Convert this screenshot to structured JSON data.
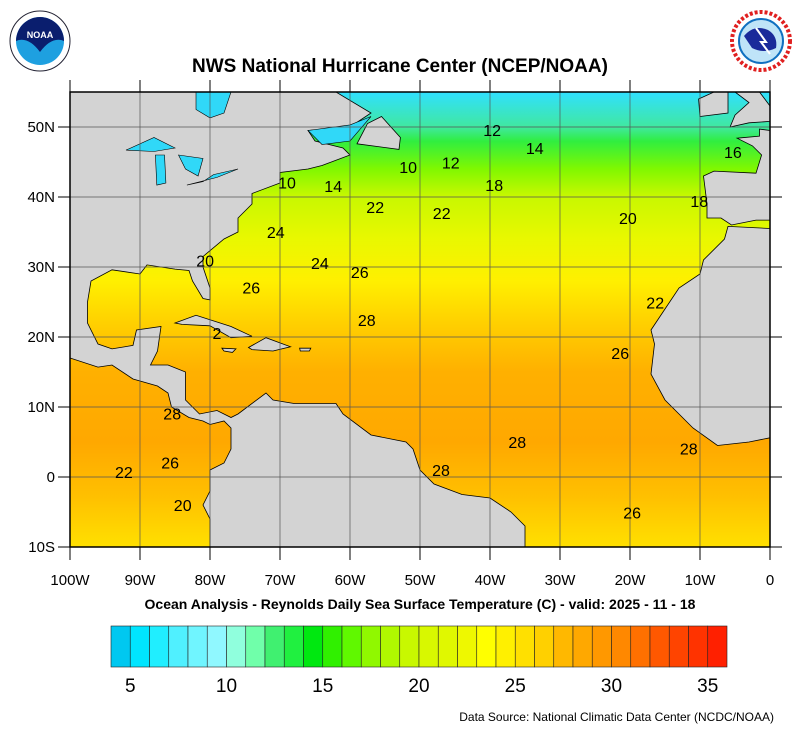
{
  "header": {
    "title": "NWS National Hurricane Center (NCEP/NOAA)",
    "left_logo": "NOAA",
    "right_logo": "NATIONAL WEATHER SERVICE"
  },
  "map": {
    "subtitle": "Ocean Analysis - Reynolds Daily Sea Surface Temperature (C) - valid: 2025 - 11 - 18",
    "lon_range": [
      -100,
      0
    ],
    "lat_range": [
      -10,
      55
    ],
    "lon_ticks": [
      "100W",
      "90W",
      "80W",
      "70W",
      "60W",
      "50W",
      "40W",
      "30W",
      "20W",
      "10W",
      "0"
    ],
    "lat_ticks": [
      "10S",
      "0",
      "10N",
      "20N",
      "30N",
      "40N",
      "50N"
    ],
    "land_color": "#d3d3d3",
    "grid": true,
    "contour_labels": [
      {
        "value": "12",
        "lon": -39.7,
        "lat": 49.6
      },
      {
        "value": "14",
        "lon": -33.6,
        "lat": 47
      },
      {
        "value": "16",
        "lon": -5.3,
        "lat": 46.4
      },
      {
        "value": "12",
        "lon": -45.6,
        "lat": 44.9
      },
      {
        "value": "10",
        "lon": -51.7,
        "lat": 44.3
      },
      {
        "value": "10",
        "lon": -69,
        "lat": 42.1
      },
      {
        "value": "14",
        "lon": -62.4,
        "lat": 41.6
      },
      {
        "value": "18",
        "lon": -39.4,
        "lat": 41.7
      },
      {
        "value": "22",
        "lon": -56.4,
        "lat": 38.6
      },
      {
        "value": "22",
        "lon": -46.9,
        "lat": 37.7
      },
      {
        "value": "20",
        "lon": -20.3,
        "lat": 37
      },
      {
        "value": "18",
        "lon": -10.1,
        "lat": 39.4
      },
      {
        "value": "24",
        "lon": -70.6,
        "lat": 35
      },
      {
        "value": "24",
        "lon": -64.3,
        "lat": 30.6
      },
      {
        "value": "26",
        "lon": -58.6,
        "lat": 29.3
      },
      {
        "value": "20",
        "lon": -80.7,
        "lat": 30.9
      },
      {
        "value": "26",
        "lon": -74.1,
        "lat": 27.1
      },
      {
        "value": "28",
        "lon": -57.6,
        "lat": 22.4
      },
      {
        "value": "22",
        "lon": -16.4,
        "lat": 24.9
      },
      {
        "value": "26",
        "lon": -21.4,
        "lat": 17.7
      },
      {
        "value": "2",
        "lon": -79,
        "lat": 20.6
      },
      {
        "value": "28",
        "lon": -85.4,
        "lat": 9.1
      },
      {
        "value": "28",
        "lon": -36.1,
        "lat": 5
      },
      {
        "value": "28",
        "lon": -11.6,
        "lat": 4.1
      },
      {
        "value": "28",
        "lon": -47,
        "lat": 1
      },
      {
        "value": "26",
        "lon": -85.7,
        "lat": 2.1
      },
      {
        "value": "22",
        "lon": -92.3,
        "lat": 0.7
      },
      {
        "value": "20",
        "lon": -83.9,
        "lat": -4
      },
      {
        "value": "26",
        "lon": -19.7,
        "lat": -5.1
      }
    ]
  },
  "colorbar": {
    "min": 4,
    "max": 36,
    "step": 1,
    "labels": [
      "5",
      "10",
      "15",
      "20",
      "25",
      "30",
      "35"
    ],
    "colors": [
      "#00c8f0",
      "#00e5ff",
      "#20eeff",
      "#50f0ff",
      "#70f5ff",
      "#90f8ff",
      "#90ffdd",
      "#70ffaa",
      "#40f070",
      "#20f040",
      "#00e810",
      "#30f000",
      "#60f800",
      "#90f800",
      "#b0f800",
      "#c8f800",
      "#d8f800",
      "#e0f800",
      "#eef800",
      "#ffff00",
      "#fff000",
      "#ffe000",
      "#ffd000",
      "#ffb800",
      "#ffa800",
      "#ff9800",
      "#ff8800",
      "#ff7000",
      "#ff5800",
      "#ff4400",
      "#ff3300",
      "#ff2000"
    ]
  },
  "footer": {
    "source": "Data Source: National Climatic Data Center (NCDC/NOAA)"
  }
}
